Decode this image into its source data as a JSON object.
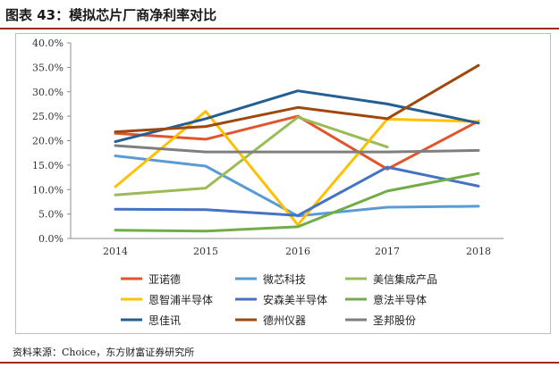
{
  "header": {
    "title": "图表 43：模拟芯片厂商净利率对比"
  },
  "footer": {
    "source": "资料来源：Choice，东方财富证券研究所"
  },
  "chart_data": {
    "type": "line",
    "title": "模拟芯片厂商净利率对比",
    "xlabel": "",
    "ylabel": "",
    "categories": [
      "2014",
      "2015",
      "2016",
      "2017",
      "2018"
    ],
    "ylim": [
      0,
      40
    ],
    "yticks": [
      0,
      5,
      10,
      15,
      20,
      25,
      30,
      35,
      40
    ],
    "ytick_labels": [
      "0.0%",
      "5.0%",
      "10.0%",
      "15.0%",
      "20.0%",
      "25.0%",
      "30.0%",
      "35.0%",
      "40.0%"
    ],
    "legend_position": "bottom",
    "series": [
      {
        "name": "亚诺德",
        "color": "#e2542a",
        "values": [
          21.5,
          20.3,
          25.0,
          14.2,
          24.0
        ]
      },
      {
        "name": "微芯科技",
        "color": "#5b9bd5",
        "values": [
          16.9,
          14.8,
          4.6,
          6.4,
          6.6
        ]
      },
      {
        "name": "美信集成产品",
        "color": "#9bbb59",
        "values": [
          8.9,
          10.3,
          24.8,
          18.7,
          null
        ]
      },
      {
        "name": "恩智浦半导体",
        "color": "#ffc000",
        "values": [
          10.6,
          26.0,
          2.8,
          24.4,
          23.9
        ]
      },
      {
        "name": "安森美半导体",
        "color": "#4472c4",
        "values": [
          6.0,
          5.9,
          4.7,
          14.6,
          10.7
        ]
      },
      {
        "name": "意法半导体",
        "color": "#70ad47",
        "values": [
          1.7,
          1.5,
          2.4,
          9.7,
          13.3
        ]
      },
      {
        "name": "思佳讯",
        "color": "#255e91",
        "values": [
          19.8,
          24.5,
          30.2,
          27.5,
          23.6
        ]
      },
      {
        "name": "德州仪器",
        "color": "#9e480e",
        "values": [
          21.8,
          22.9,
          26.8,
          24.5,
          35.4
        ]
      },
      {
        "name": "圣邦股份",
        "color": "#7f7f7f",
        "values": [
          19.0,
          17.7,
          17.7,
          17.7,
          18.0
        ]
      }
    ]
  }
}
